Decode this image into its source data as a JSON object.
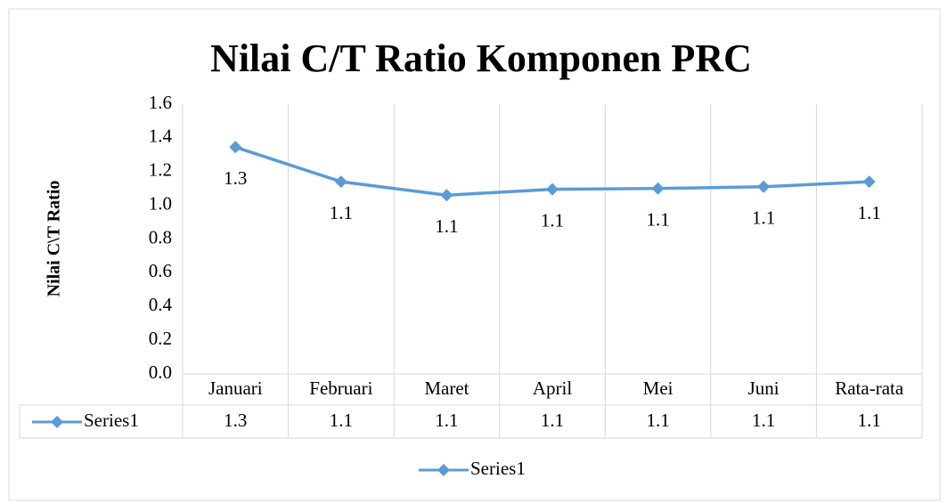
{
  "chart_data": {
    "type": "line",
    "title": "Nilai C/T Ratio Komponen PRC",
    "y_label": "Nilai C\\T Ratio",
    "categories": [
      "Januari",
      "Februari",
      "Maret",
      "April",
      "Mei",
      "Juni",
      "Rata-rata"
    ],
    "series": [
      {
        "name": "Series1",
        "color": "#5b9bd5",
        "values": [
          1.345,
          1.14,
          1.06,
          1.095,
          1.1,
          1.11,
          1.14
        ],
        "value_labels": [
          "1.3",
          "1.1",
          "1.1",
          "1.1",
          "1.1",
          "1.1",
          "1.1"
        ]
      }
    ],
    "ylim": [
      0,
      1.6
    ],
    "yticks": [
      {
        "value": 0,
        "label": "0.0"
      },
      0.2,
      0.4,
      0.6,
      0.8,
      {
        "value": 1,
        "label": "1.0"
      },
      1.2,
      1.4,
      1.6
    ],
    "data_table": true,
    "legend": "bottom"
  }
}
